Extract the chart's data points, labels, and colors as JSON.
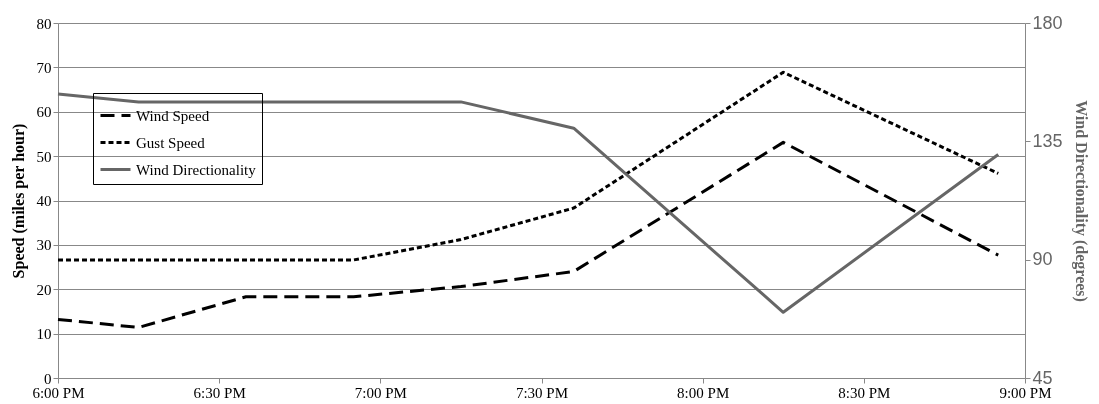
{
  "chart_data": {
    "type": "line",
    "xlabel": null,
    "ylabel": "Speed (miles per hour)",
    "y2label": "Wind Directionality (degrees)",
    "xlim": [
      18,
      21
    ],
    "xticks": [
      {
        "value": 18,
        "label": "6:00 PM"
      },
      {
        "value": 18.5,
        "label": "6:30 PM"
      },
      {
        "value": 19,
        "label": "7:00 PM"
      },
      {
        "value": 19.5,
        "label": "7:30 PM"
      },
      {
        "value": 20,
        "label": "8:00 PM"
      },
      {
        "value": 20.5,
        "label": "8:30 PM"
      },
      {
        "value": 21,
        "label": "9:00 PM"
      }
    ],
    "ylim": [
      0,
      80
    ],
    "yticks": [
      0,
      10,
      20,
      30,
      40,
      50,
      60,
      70,
      80
    ],
    "y2lim": [
      45,
      180
    ],
    "y2ticks": [
      45,
      90,
      135,
      180
    ],
    "x": [
      18,
      18.25,
      18.583,
      18.917,
      19.25,
      19.6,
      20.25,
      20.917
    ],
    "series": [
      {
        "name": "Wind Speed",
        "color": "#000000",
        "line_style": "dashed",
        "values": [
          13.2,
          11.4,
          18.3,
          18.3,
          20.6,
          24.0,
          53.1,
          27.7
        ]
      },
      {
        "name": "Gust Speed",
        "color": "#000000",
        "line_style": "dotted",
        "values": [
          26.6,
          26.6,
          26.6,
          26.6,
          31.2,
          38.3,
          68.9,
          46.1
        ]
      },
      {
        "name": "Wind Directionality",
        "color": "#666666",
        "line_style": "solid",
        "axis": "y2",
        "values": [
          153,
          150,
          150,
          150,
          150,
          140,
          70,
          130
        ]
      }
    ],
    "grid": "y",
    "legend": "top left",
    "marker": "none"
  }
}
